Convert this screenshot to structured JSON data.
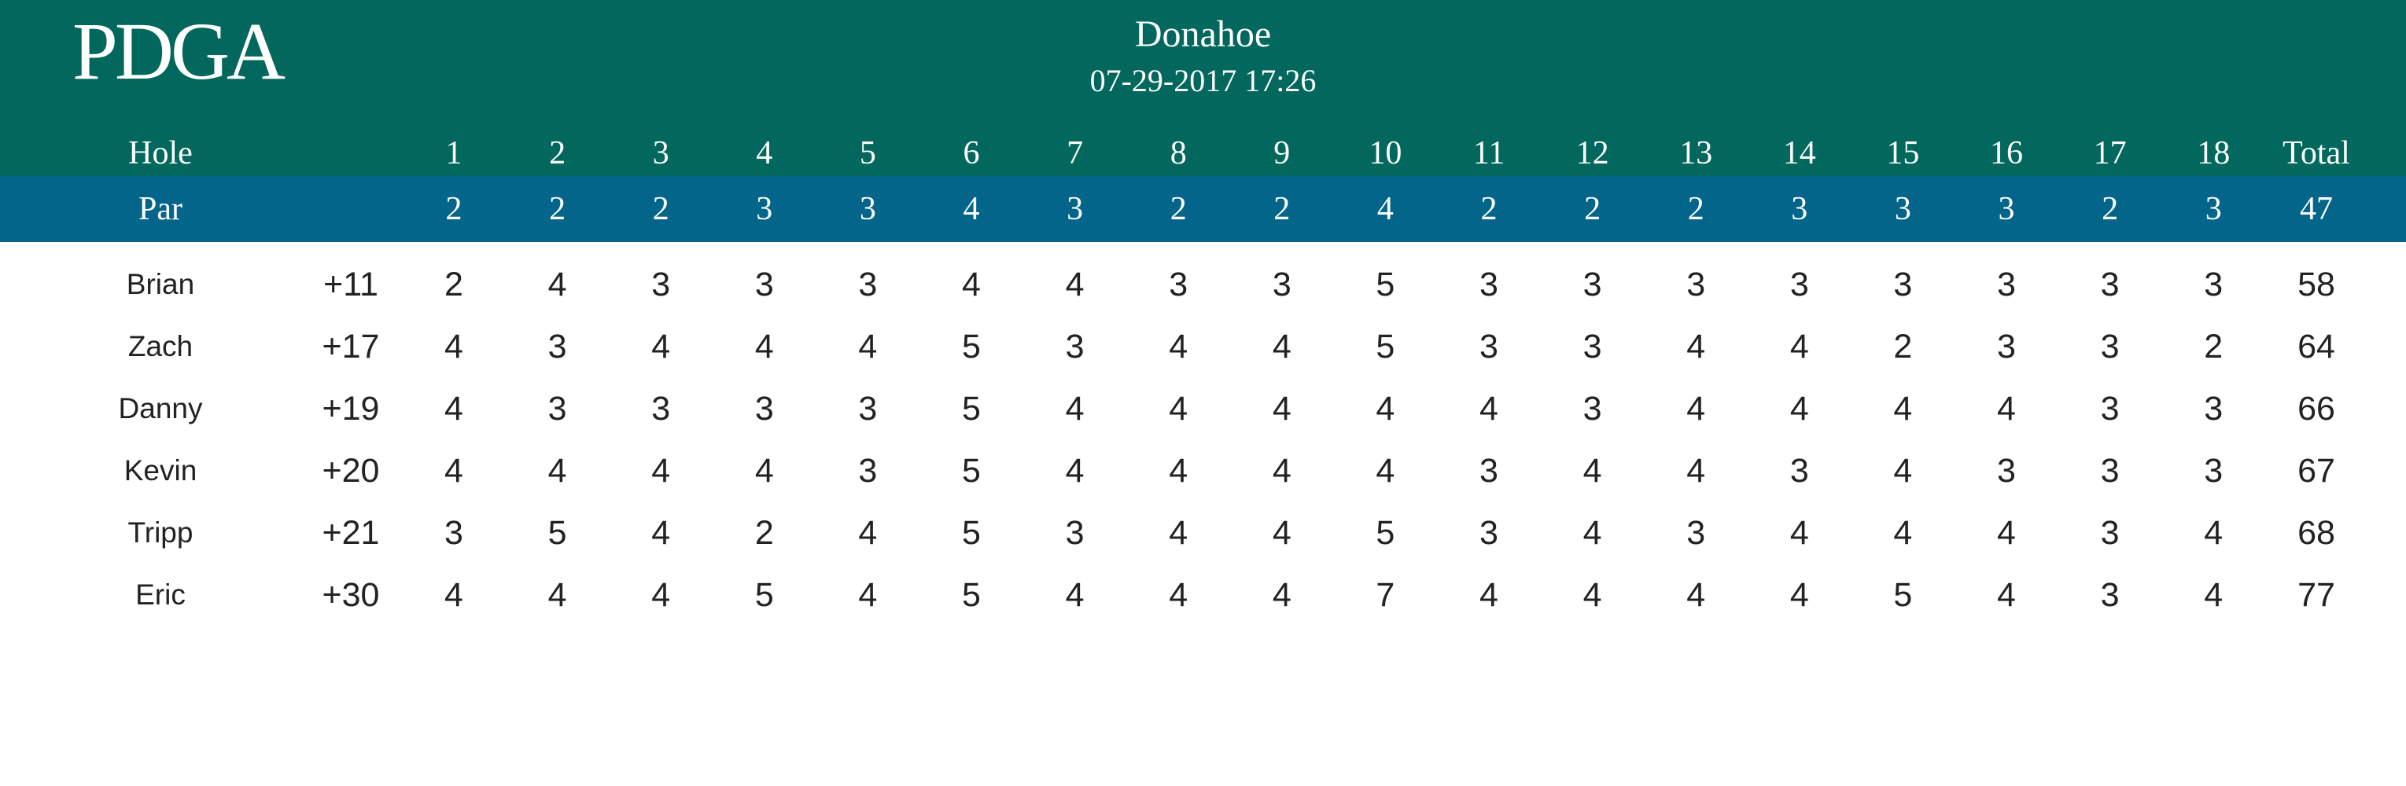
{
  "header": {
    "logo_text": "PDGA",
    "course": "Donahoe",
    "datetime": "07-29-2017 17:26",
    "background_color": "#02675c"
  },
  "holes_label": "Hole",
  "par_label": "Par",
  "total_label": "Total",
  "holes": [
    "1",
    "2",
    "3",
    "4",
    "5",
    "6",
    "7",
    "8",
    "9",
    "10",
    "11",
    "12",
    "13",
    "14",
    "15",
    "16",
    "17",
    "18"
  ],
  "par": {
    "values": [
      "2",
      "2",
      "2",
      "3",
      "3",
      "4",
      "3",
      "2",
      "2",
      "4",
      "2",
      "2",
      "2",
      "3",
      "3",
      "3",
      "2",
      "3"
    ],
    "total": "47",
    "background_color": "#03658a"
  },
  "players": [
    {
      "name": "Brian",
      "relative": "+11",
      "scores": [
        "2",
        "4",
        "3",
        "3",
        "3",
        "4",
        "4",
        "3",
        "3",
        "5",
        "3",
        "3",
        "3",
        "3",
        "3",
        "3",
        "3",
        "3"
      ],
      "total": "58"
    },
    {
      "name": "Zach",
      "relative": "+17",
      "scores": [
        "4",
        "3",
        "4",
        "4",
        "4",
        "5",
        "3",
        "4",
        "4",
        "5",
        "3",
        "3",
        "4",
        "4",
        "2",
        "3",
        "3",
        "2"
      ],
      "total": "64"
    },
    {
      "name": "Danny",
      "relative": "+19",
      "scores": [
        "4",
        "3",
        "3",
        "3",
        "3",
        "5",
        "4",
        "4",
        "4",
        "4",
        "4",
        "3",
        "4",
        "4",
        "4",
        "4",
        "3",
        "3"
      ],
      "total": "66"
    },
    {
      "name": "Kevin",
      "relative": "+20",
      "scores": [
        "4",
        "4",
        "4",
        "4",
        "3",
        "5",
        "4",
        "4",
        "4",
        "4",
        "3",
        "4",
        "4",
        "3",
        "4",
        "3",
        "3",
        "3"
      ],
      "total": "67"
    },
    {
      "name": "Tripp",
      "relative": "+21",
      "scores": [
        "3",
        "5",
        "4",
        "2",
        "4",
        "5",
        "3",
        "4",
        "4",
        "5",
        "3",
        "4",
        "3",
        "4",
        "4",
        "4",
        "3",
        "4"
      ],
      "total": "68"
    },
    {
      "name": "Eric",
      "relative": "+30",
      "scores": [
        "4",
        "4",
        "4",
        "5",
        "4",
        "5",
        "4",
        "4",
        "4",
        "7",
        "4",
        "4",
        "4",
        "4",
        "5",
        "4",
        "3",
        "4"
      ],
      "total": "77"
    }
  ]
}
